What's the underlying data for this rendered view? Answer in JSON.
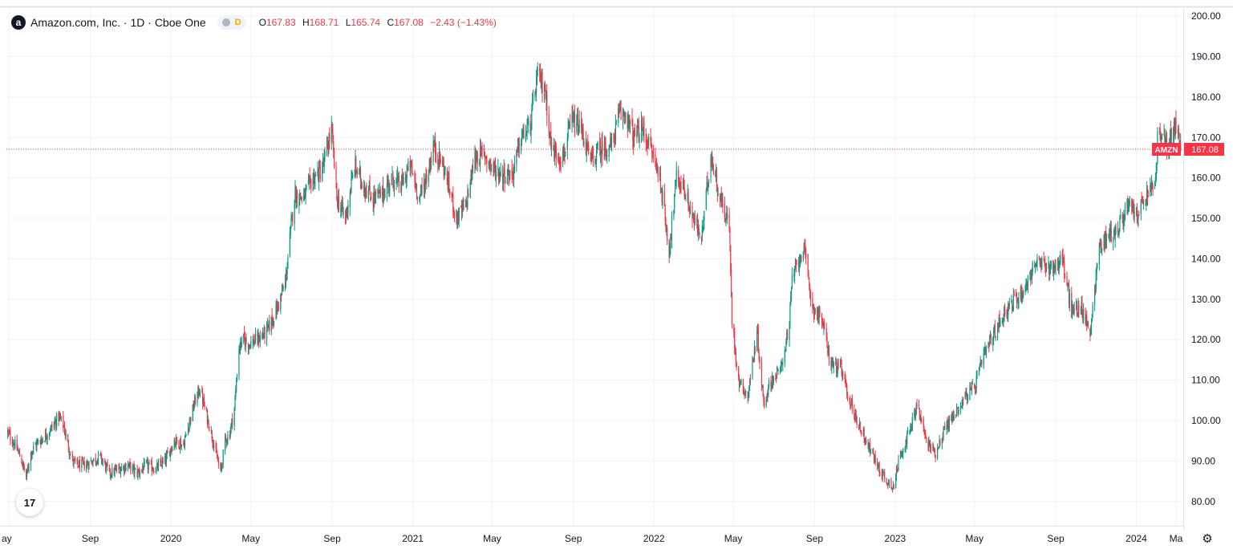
{
  "legend": {
    "title": "Amazon.com, Inc. · 1D · Cboe One",
    "logo_letter": "a",
    "mode_letter": "D",
    "ohlc": [
      {
        "k": "O",
        "v": "167.83"
      },
      {
        "k": "H",
        "v": "168.71"
      },
      {
        "k": "L",
        "v": "165.74"
      },
      {
        "k": "C",
        "v": "167.08"
      },
      {
        "k": "",
        "v": "−2.43 (−1.43%)"
      }
    ]
  },
  "tv_logo_text": "17",
  "gear_glyph": "⚙",
  "colors": {
    "up": "#089981",
    "down": "#f23645",
    "grid": "#f0f3fa",
    "axis_text": "#131722"
  },
  "chart_data": {
    "type": "candlestick",
    "symbol": "AMZN",
    "last_price": 167.08,
    "price_label": "167.08",
    "symbol_label": "AMZN",
    "ylim": [
      74,
      202
    ],
    "y_ticks": [
      80,
      90,
      100,
      110,
      120,
      130,
      140,
      150,
      160,
      170,
      180,
      190,
      200
    ],
    "y_tick_labels": [
      "80.00",
      "90.00",
      "100.00",
      "110.00",
      "120.00",
      "130.00",
      "140.00",
      "150.00",
      "160.00",
      "170.00",
      "180.00",
      "190.00",
      "200.00"
    ],
    "xlim": [
      "2019-04-27",
      "2024-03-12"
    ],
    "x_ticks": [
      {
        "date": "2019-05-01",
        "label": "ay"
      },
      {
        "date": "2019-09-01",
        "label": "Sep"
      },
      {
        "date": "2020-01-01",
        "label": "2020"
      },
      {
        "date": "2020-05-01",
        "label": "May"
      },
      {
        "date": "2020-09-01",
        "label": "Sep"
      },
      {
        "date": "2021-01-01",
        "label": "2021"
      },
      {
        "date": "2021-05-01",
        "label": "May"
      },
      {
        "date": "2021-09-01",
        "label": "Sep"
      },
      {
        "date": "2022-01-01",
        "label": "2022"
      },
      {
        "date": "2022-05-01",
        "label": "May"
      },
      {
        "date": "2022-09-01",
        "label": "Sep"
      },
      {
        "date": "2023-01-01",
        "label": "2023"
      },
      {
        "date": "2023-05-01",
        "label": "May"
      },
      {
        "date": "2023-09-01",
        "label": "Sep"
      },
      {
        "date": "2024-01-01",
        "label": "2024"
      },
      {
        "date": "2024-03-01",
        "label": "Ma"
      }
    ],
    "grid": true,
    "closes": [
      [
        "2019-04-29",
        97
      ],
      [
        "2019-05-06",
        95
      ],
      [
        "2019-05-13",
        93
      ],
      [
        "2019-05-20",
        90
      ],
      [
        "2019-05-27",
        86
      ],
      [
        "2019-06-03",
        92
      ],
      [
        "2019-06-10",
        94
      ],
      [
        "2019-06-17",
        95
      ],
      [
        "2019-06-24",
        96
      ],
      [
        "2019-07-08",
        99
      ],
      [
        "2019-07-15",
        101
      ],
      [
        "2019-07-22",
        99
      ],
      [
        "2019-07-29",
        94
      ],
      [
        "2019-08-05",
        90
      ],
      [
        "2019-08-12",
        89
      ],
      [
        "2019-08-19",
        89
      ],
      [
        "2019-08-26",
        89
      ],
      [
        "2019-09-03",
        90
      ],
      [
        "2019-09-16",
        91
      ],
      [
        "2019-09-30",
        87
      ],
      [
        "2019-10-14",
        88
      ],
      [
        "2019-10-28",
        89
      ],
      [
        "2019-11-11",
        87
      ],
      [
        "2019-11-25",
        89
      ],
      [
        "2019-12-09",
        88
      ],
      [
        "2019-12-23",
        90
      ],
      [
        "2020-01-06",
        95
      ],
      [
        "2020-01-20",
        94
      ],
      [
        "2020-01-31",
        101
      ],
      [
        "2020-02-07",
        105
      ],
      [
        "2020-02-14",
        108
      ],
      [
        "2020-02-21",
        103
      ],
      [
        "2020-03-02",
        97
      ],
      [
        "2020-03-09",
        92
      ],
      [
        "2020-03-16",
        87
      ],
      [
        "2020-03-23",
        95
      ],
      [
        "2020-03-30",
        97
      ],
      [
        "2020-04-06",
        103
      ],
      [
        "2020-04-13",
        118
      ],
      [
        "2020-04-20",
        120
      ],
      [
        "2020-04-27",
        119
      ],
      [
        "2020-05-11",
        120
      ],
      [
        "2020-05-25",
        122
      ],
      [
        "2020-06-08",
        127
      ],
      [
        "2020-06-22",
        134
      ],
      [
        "2020-06-29",
        145
      ],
      [
        "2020-07-06",
        156
      ],
      [
        "2020-07-20",
        155
      ],
      [
        "2020-08-03",
        160
      ],
      [
        "2020-08-17",
        162
      ],
      [
        "2020-08-31",
        172
      ],
      [
        "2020-09-08",
        155
      ],
      [
        "2020-09-21",
        150
      ],
      [
        "2020-10-05",
        163
      ],
      [
        "2020-10-19",
        158
      ],
      [
        "2020-11-02",
        155
      ],
      [
        "2020-11-16",
        156
      ],
      [
        "2020-11-30",
        160
      ],
      [
        "2020-12-14",
        158
      ],
      [
        "2020-12-28",
        163
      ],
      [
        "2021-01-11",
        155
      ],
      [
        "2021-01-25",
        162
      ],
      [
        "2021-02-01",
        168
      ],
      [
        "2021-02-16",
        163
      ],
      [
        "2021-03-01",
        155
      ],
      [
        "2021-03-08",
        150
      ],
      [
        "2021-03-22",
        153
      ],
      [
        "2021-04-05",
        165
      ],
      [
        "2021-04-19",
        166
      ],
      [
        "2021-05-03",
        162
      ],
      [
        "2021-05-17",
        161
      ],
      [
        "2021-06-01",
        161
      ],
      [
        "2021-06-14",
        170
      ],
      [
        "2021-06-28",
        173
      ],
      [
        "2021-07-08",
        185
      ],
      [
        "2021-07-20",
        182
      ],
      [
        "2021-07-30",
        167
      ],
      [
        "2021-08-16",
        165
      ],
      [
        "2021-08-30",
        174
      ],
      [
        "2021-09-13",
        172
      ],
      [
        "2021-09-27",
        164
      ],
      [
        "2021-10-11",
        167
      ],
      [
        "2021-10-29",
        168
      ],
      [
        "2021-11-08",
        175
      ],
      [
        "2021-11-19",
        176
      ],
      [
        "2021-12-01",
        170
      ],
      [
        "2021-12-15",
        172
      ],
      [
        "2021-12-30",
        166
      ],
      [
        "2022-01-10",
        160
      ],
      [
        "2022-01-24",
        142
      ],
      [
        "2022-02-04",
        160
      ],
      [
        "2022-02-14",
        158
      ],
      [
        "2022-03-01",
        150
      ],
      [
        "2022-03-14",
        145
      ],
      [
        "2022-03-28",
        166
      ],
      [
        "2022-04-11",
        155
      ],
      [
        "2022-04-25",
        148
      ],
      [
        "2022-04-29",
        125
      ],
      [
        "2022-05-09",
        110
      ],
      [
        "2022-05-23",
        106
      ],
      [
        "2022-06-06",
        122
      ],
      [
        "2022-06-16",
        104
      ],
      [
        "2022-06-27",
        110
      ],
      [
        "2022-07-11",
        112
      ],
      [
        "2022-07-25",
        124
      ],
      [
        "2022-07-29",
        135
      ],
      [
        "2022-08-15",
        143
      ],
      [
        "2022-08-29",
        128
      ],
      [
        "2022-09-12",
        125
      ],
      [
        "2022-09-26",
        114
      ],
      [
        "2022-10-10",
        113
      ],
      [
        "2022-10-28",
        103
      ],
      [
        "2022-11-07",
        99
      ],
      [
        "2022-11-21",
        94
      ],
      [
        "2022-12-05",
        89
      ],
      [
        "2022-12-19",
        85
      ],
      [
        "2022-12-30",
        84
      ],
      [
        "2023-01-09",
        92
      ],
      [
        "2023-01-23",
        97
      ],
      [
        "2023-02-03",
        104
      ],
      [
        "2023-02-17",
        95
      ],
      [
        "2023-03-03",
        92
      ],
      [
        "2023-03-17",
        98
      ],
      [
        "2023-04-03",
        102
      ],
      [
        "2023-04-17",
        106
      ],
      [
        "2023-05-01",
        108
      ],
      [
        "2023-05-15",
        116
      ],
      [
        "2023-06-01",
        122
      ],
      [
        "2023-06-16",
        127
      ],
      [
        "2023-07-03",
        130
      ],
      [
        "2023-07-17",
        133
      ],
      [
        "2023-08-01",
        139
      ],
      [
        "2023-08-15",
        138
      ],
      [
        "2023-08-29",
        138
      ],
      [
        "2023-09-11",
        140
      ],
      [
        "2023-09-25",
        127
      ],
      [
        "2023-10-09",
        128
      ],
      [
        "2023-10-23",
        122
      ],
      [
        "2023-11-06",
        143
      ],
      [
        "2023-11-20",
        146
      ],
      [
        "2023-12-04",
        147
      ],
      [
        "2023-12-18",
        153
      ],
      [
        "2024-01-02",
        151
      ],
      [
        "2024-01-16",
        155
      ],
      [
        "2024-01-31",
        160
      ],
      [
        "2024-02-02",
        171
      ],
      [
        "2024-02-16",
        168
      ],
      [
        "2024-03-01",
        173
      ],
      [
        "2024-03-08",
        167
      ]
    ]
  }
}
